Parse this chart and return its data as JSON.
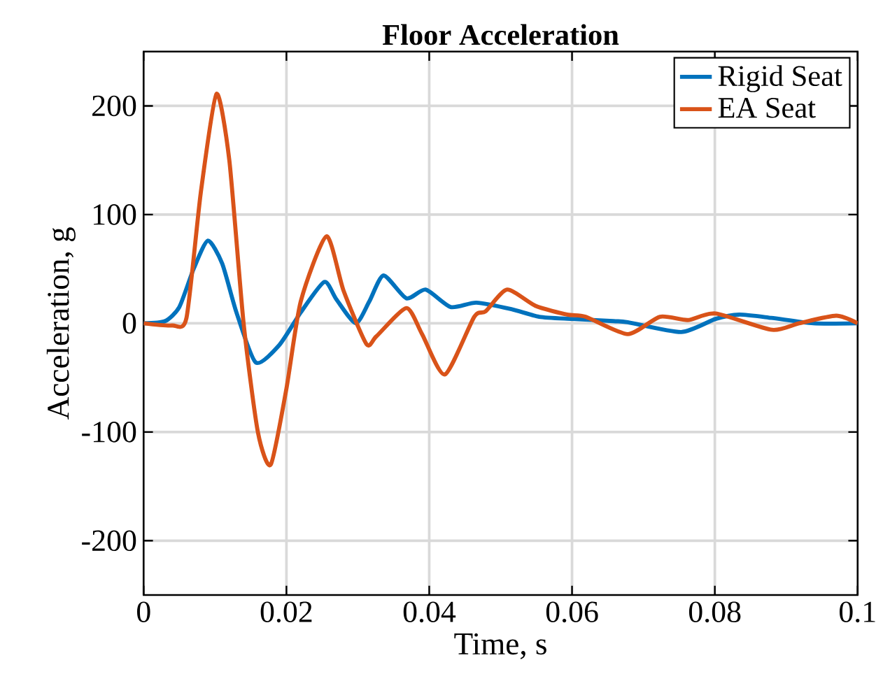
{
  "chart_data": {
    "type": "line",
    "title": "Floor Acceleration",
    "xlabel": "Time, s",
    "ylabel": "Acceleration, g",
    "xlim": [
      0,
      0.1
    ],
    "ylim": [
      -250,
      250
    ],
    "xticks": [
      0,
      0.02,
      0.04,
      0.06,
      0.08,
      0.1
    ],
    "yticks": [
      -200,
      -100,
      0,
      100,
      200
    ],
    "grid": true,
    "legend": "top right",
    "line_style": "solid",
    "marker": "none",
    "series": [
      {
        "name": "Rigid Seat",
        "color": "#0072bd",
        "x": [
          0,
          0.003,
          0.005,
          0.007,
          0.009,
          0.011,
          0.013,
          0.0157,
          0.019,
          0.022,
          0.0253,
          0.027,
          0.0297,
          0.0316,
          0.0336,
          0.0368,
          0.0395,
          0.043,
          0.0466,
          0.0515,
          0.0554,
          0.06,
          0.0658,
          0.0678,
          0.0753,
          0.0801,
          0.0834,
          0.0879,
          0.0938,
          0.1
        ],
        "values": [
          0,
          2,
          15,
          50,
          76,
          55,
          10,
          -36,
          -20,
          10,
          38,
          22,
          0,
          20,
          44,
          23,
          31,
          15,
          19,
          13,
          6,
          4,
          2,
          1,
          -8,
          4,
          8,
          5,
          0,
          0
        ]
      },
      {
        "name": "EA Seat",
        "color": "#d95319",
        "x": [
          0,
          0.004,
          0.006,
          0.008,
          0.0102,
          0.012,
          0.014,
          0.016,
          0.0178,
          0.02,
          0.022,
          0.0256,
          0.028,
          0.0312,
          0.0326,
          0.0368,
          0.039,
          0.0422,
          0.0463,
          0.0479,
          0.0509,
          0.0549,
          0.0593,
          0.0619,
          0.0678,
          0.0723,
          0.0762,
          0.0801,
          0.088,
          0.0918,
          0.097,
          0.1
        ],
        "values": [
          0,
          -2,
          5,
          120,
          211,
          150,
          0,
          -100,
          -130,
          -60,
          20,
          80,
          30,
          -19,
          -12,
          14,
          -10,
          -47,
          6,
          11,
          31,
          16,
          8,
          6,
          -10,
          6,
          3,
          9,
          -6,
          0,
          7,
          0
        ]
      }
    ]
  }
}
